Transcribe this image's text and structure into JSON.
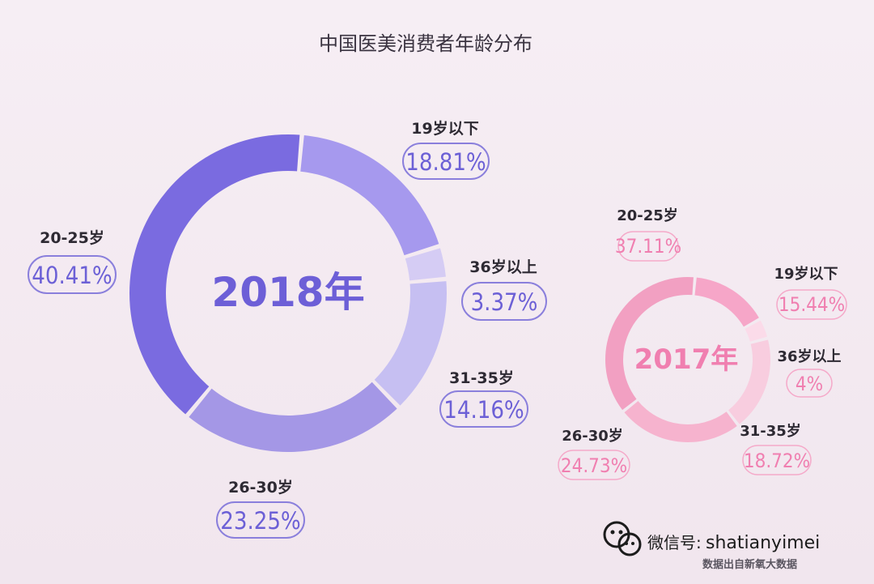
{
  "title": "中国医美消费者年龄分布",
  "chart_data": [
    {
      "type": "pie",
      "center_label": "2018年",
      "categories": [
        "19岁以下",
        "36岁以上",
        "31-35岁",
        "26-30岁",
        "20-25岁"
      ],
      "values": [
        18.81,
        3.37,
        14.16,
        23.25,
        40.41
      ],
      "value_labels": [
        "18.81%",
        "3.37%",
        "14.16%",
        "23.25%",
        "40.41%"
      ],
      "colors": [
        "#a699ee",
        "#d5ccf4",
        "#c6bff2",
        "#a497e6",
        "#7a6be0"
      ]
    },
    {
      "type": "pie",
      "center_label": "2017年",
      "categories": [
        "19岁以下",
        "36岁以上",
        "31-35岁",
        "26-30岁",
        "20-25岁"
      ],
      "values": [
        15.44,
        4,
        18.72,
        24.73,
        37.11
      ],
      "value_labels": [
        "15.44%",
        "4%",
        "18.72%",
        "24.73%",
        "37.11%"
      ],
      "colors": [
        "#f6a6c8",
        "#fbdbe9",
        "#f8cddf",
        "#f6b3ce",
        "#f2a0c2"
      ]
    }
  ],
  "watermark": {
    "wechat_prefix": "微信号:",
    "wechat_id": "shatianyimei",
    "source": "数据出自新氧大数据"
  }
}
